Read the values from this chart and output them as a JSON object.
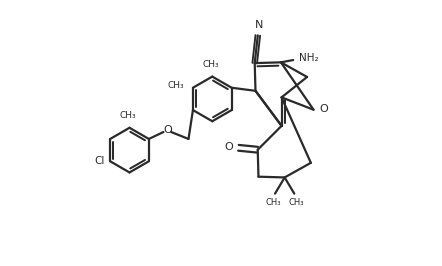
{
  "background_color": "#ffffff",
  "line_color": "#2a2a2a",
  "line_width": 1.6,
  "figsize": [
    4.42,
    2.66
  ],
  "dpi": 100,
  "xlim": [
    0,
    8.84
  ],
  "ylim": [
    0,
    5.32
  ]
}
